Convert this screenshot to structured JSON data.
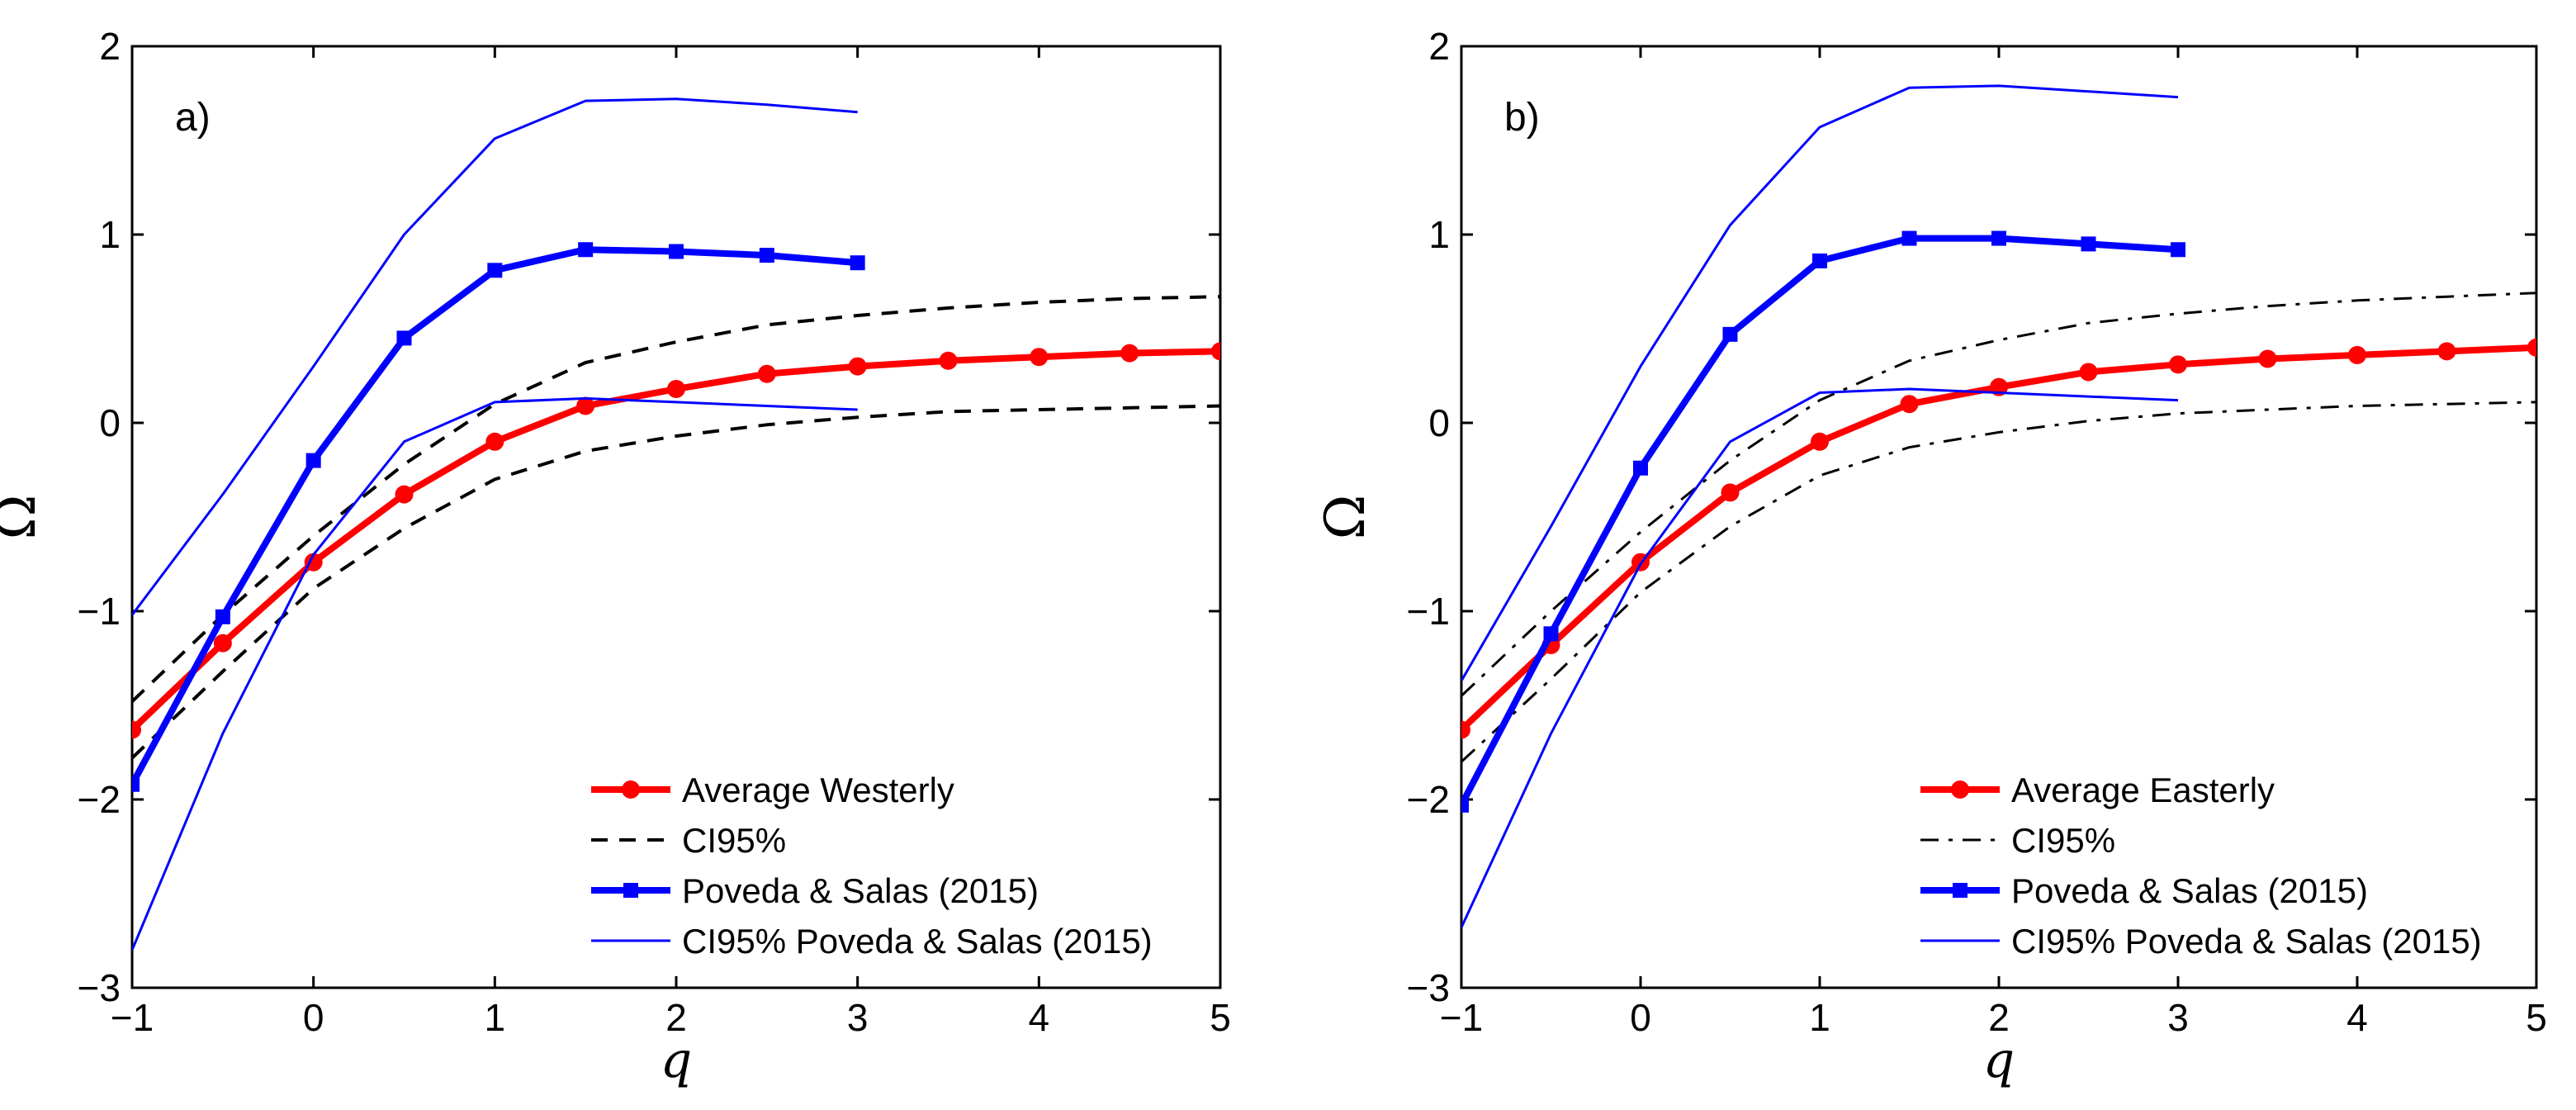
{
  "chart_data": [
    {
      "type": "line",
      "panel_label": "a)",
      "xlabel": "q",
      "ylabel": "Ω",
      "xlim": [
        -1,
        5
      ],
      "ylim": [
        -3,
        2
      ],
      "xticks": [
        "−1",
        "0",
        "1",
        "2",
        "3",
        "4",
        "5"
      ],
      "yticks": [
        "−3",
        "−2",
        "−1",
        "0",
        "1",
        "2"
      ],
      "legend_position": "bottom-right",
      "series": [
        {
          "name": "Average Westerly",
          "color": "#ff0000",
          "style": "solid-thick",
          "marker": "circle",
          "x": [
            -1,
            -0.5,
            0,
            0.5,
            1,
            1.5,
            2,
            2.5,
            3,
            3.5,
            4,
            4.5,
            5
          ],
          "y": [
            -1.63,
            -1.17,
            -0.74,
            -0.38,
            -0.1,
            0.09,
            0.18,
            0.26,
            0.3,
            0.33,
            0.35,
            0.37,
            0.38
          ]
        },
        {
          "name": "CI95%",
          "color": "#000000",
          "style": "dashed",
          "marker": "none",
          "x": [
            -1,
            -0.5,
            0,
            0.5,
            1,
            1.5,
            2,
            2.5,
            3,
            3.5,
            4,
            4.5,
            5
          ],
          "y": [
            -1.48,
            -1.02,
            -0.6,
            -0.22,
            0.1,
            0.32,
            0.43,
            0.52,
            0.57,
            0.61,
            0.64,
            0.66,
            0.67
          ]
        },
        {
          "name": "",
          "legend": false,
          "color": "#000000",
          "style": "dashed",
          "marker": "none",
          "x": [
            -1,
            -0.5,
            0,
            0.5,
            1,
            1.5,
            2,
            2.5,
            3,
            3.5,
            4,
            4.5,
            5
          ],
          "y": [
            -1.78,
            -1.32,
            -0.88,
            -0.56,
            -0.3,
            -0.15,
            -0.07,
            -0.01,
            0.03,
            0.06,
            0.07,
            0.08,
            0.09
          ]
        },
        {
          "name": "Poveda & Salas (2015)",
          "color": "#0000ff",
          "style": "solid-thick",
          "marker": "square",
          "x": [
            -1,
            -0.5,
            0,
            0.5,
            1,
            1.5,
            2,
            2.5,
            3
          ],
          "y": [
            -1.92,
            -1.03,
            -0.2,
            0.45,
            0.81,
            0.92,
            0.91,
            0.89,
            0.85
          ]
        },
        {
          "name": "CI95% Poveda & Salas (2015)",
          "color": "#0000ff",
          "style": "solid-thin",
          "marker": "none",
          "x": [
            -1,
            -0.5,
            0,
            0.5,
            1,
            1.5,
            2,
            2.5,
            3
          ],
          "y": [
            -1.02,
            -0.38,
            0.3,
            1.0,
            1.51,
            1.71,
            1.72,
            1.69,
            1.65
          ]
        },
        {
          "name": "",
          "legend": false,
          "color": "#0000ff",
          "style": "solid-thin",
          "marker": "none",
          "x": [
            -1,
            -0.5,
            0,
            0.5,
            1,
            1.5,
            2,
            2.5,
            3
          ],
          "y": [
            -2.8,
            -1.65,
            -0.7,
            -0.1,
            0.11,
            0.13,
            0.11,
            0.09,
            0.07
          ]
        }
      ]
    },
    {
      "type": "line",
      "panel_label": "b)",
      "xlabel": "q",
      "ylabel": "Ω",
      "xlim": [
        -1,
        5
      ],
      "ylim": [
        -3,
        2
      ],
      "xticks": [
        "−1",
        "0",
        "1",
        "2",
        "3",
        "4",
        "5"
      ],
      "yticks": [
        "−3",
        "−2",
        "−1",
        "0",
        "1",
        "2"
      ],
      "legend_position": "bottom-right",
      "series": [
        {
          "name": "Average Easterly",
          "color": "#ff0000",
          "style": "solid-thick",
          "marker": "circle",
          "x": [
            -1,
            -0.5,
            0,
            0.5,
            1,
            1.5,
            2,
            2.5,
            3,
            3.5,
            4,
            4.5,
            5
          ],
          "y": [
            -1.63,
            -1.18,
            -0.74,
            -0.37,
            -0.1,
            0.1,
            0.19,
            0.27,
            0.31,
            0.34,
            0.36,
            0.38,
            0.4
          ]
        },
        {
          "name": "CI95%",
          "color": "#000000",
          "style": "dashdot",
          "marker": "none",
          "x": [
            -1,
            -0.5,
            0,
            0.5,
            1,
            1.5,
            2,
            2.5,
            3,
            3.5,
            4,
            4.5,
            5
          ],
          "y": [
            -1.45,
            -1.0,
            -0.58,
            -0.2,
            0.12,
            0.33,
            0.44,
            0.53,
            0.58,
            0.62,
            0.65,
            0.67,
            0.69
          ]
        },
        {
          "name": "",
          "legend": false,
          "color": "#000000",
          "style": "dashdot",
          "marker": "none",
          "x": [
            -1,
            -0.5,
            0,
            0.5,
            1,
            1.5,
            2,
            2.5,
            3,
            3.5,
            4,
            4.5,
            5
          ],
          "y": [
            -1.8,
            -1.36,
            -0.9,
            -0.55,
            -0.28,
            -0.13,
            -0.05,
            0.01,
            0.05,
            0.07,
            0.09,
            0.1,
            0.11
          ]
        },
        {
          "name": "Poveda & Salas (2015)",
          "color": "#0000ff",
          "style": "solid-thick",
          "marker": "square",
          "x": [
            -1,
            -0.5,
            0,
            0.5,
            1,
            1.5,
            2,
            2.5,
            3
          ],
          "y": [
            -2.03,
            -1.12,
            -0.24,
            0.47,
            0.86,
            0.98,
            0.98,
            0.95,
            0.92
          ]
        },
        {
          "name": "CI95% Poveda & Salas (2015)",
          "color": "#0000ff",
          "style": "solid-thin",
          "marker": "none",
          "x": [
            -1,
            -0.5,
            0,
            0.5,
            1,
            1.5,
            2,
            2.5,
            3
          ],
          "y": [
            -1.37,
            -0.55,
            0.3,
            1.05,
            1.57,
            1.78,
            1.79,
            1.76,
            1.73
          ]
        },
        {
          "name": "",
          "legend": false,
          "color": "#0000ff",
          "style": "solid-thin",
          "marker": "none",
          "x": [
            -1,
            -0.5,
            0,
            0.5,
            1,
            1.5,
            2,
            2.5,
            3
          ],
          "y": [
            -2.68,
            -1.65,
            -0.75,
            -0.1,
            0.16,
            0.18,
            0.16,
            0.14,
            0.12
          ]
        }
      ]
    }
  ]
}
